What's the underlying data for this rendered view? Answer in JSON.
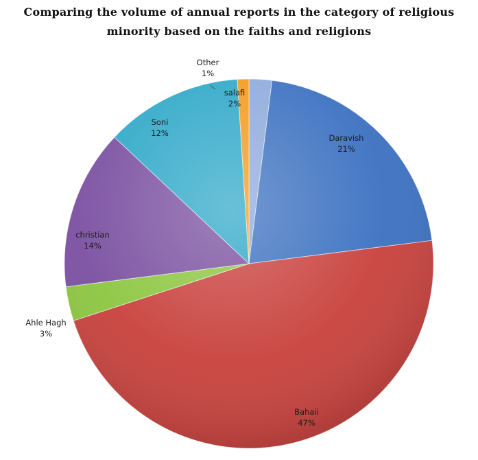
{
  "chart_data": {
    "type": "pie",
    "title_lines": [
      "Comparing the volume of annual reports in the category of religious",
      "minority based on the faiths and religions"
    ],
    "slices": [
      {
        "label": "salafi",
        "value": 2,
        "value_label": "2%",
        "color": "#8eaadb"
      },
      {
        "label": "Daravish",
        "value": 21,
        "value_label": "21%",
        "color": "#3b70c0"
      },
      {
        "label": "Bahaii",
        "value": 47,
        "value_label": "47%",
        "color": "#c8403c"
      },
      {
        "label": "Ahle Hagh",
        "value": 3,
        "value_label": "3%",
        "color": "#8cc63f"
      },
      {
        "label": "christian",
        "value": 14,
        "value_label": "14%",
        "color": "#7a4fa0"
      },
      {
        "label": "Soni",
        "value": 12,
        "value_label": "12%",
        "color": "#2ea8c8"
      },
      {
        "label": "Other",
        "value": 1,
        "value_label": "1%",
        "color": "#f39a1e"
      }
    ]
  }
}
